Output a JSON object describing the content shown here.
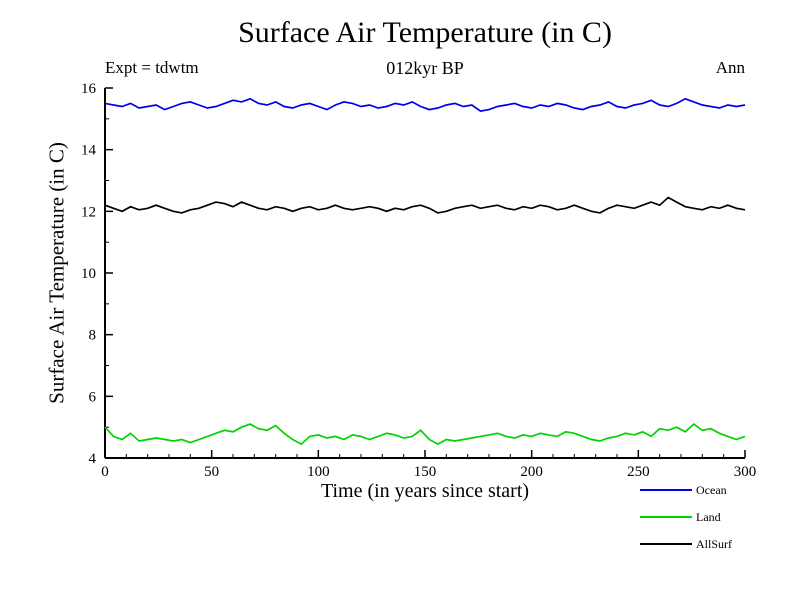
{
  "chart": {
    "title": "Surface Air Temperature (in C)",
    "subtitle_left": "Expt = tdwtm",
    "subtitle_center": "012kyr BP",
    "subtitle_right": "Ann",
    "xlabel": "Time (in years since start)",
    "ylabel": "Surface Air Temperature (in C)"
  },
  "chart_data": {
    "type": "line",
    "title": "Surface Air Temperature (in C)",
    "xlabel": "Time (in years since start)",
    "ylabel": "Surface Air Temperature (in C)",
    "xlim": [
      0,
      300
    ],
    "ylim": [
      4,
      16
    ],
    "x_major_tick": 50,
    "x_minor_tick": 10,
    "y_major_tick": 2,
    "y_minor_tick": 1,
    "x_tick_labels": [
      "0",
      "50",
      "100",
      "150",
      "200",
      "250",
      "300"
    ],
    "y_tick_labels": [
      "4",
      "6",
      "8",
      "10",
      "12",
      "14",
      "16"
    ],
    "grid": false,
    "legend_position": "bottom-right",
    "annotations": [
      "Expt = tdwtm",
      "012kyr BP",
      "Ann"
    ],
    "series": [
      {
        "name": "Ocean",
        "color": "#0000ee",
        "approx_mean": 15.45,
        "values": [
          15.5,
          15.45,
          15.4,
          15.5,
          15.35,
          15.4,
          15.45,
          15.3,
          15.4,
          15.5,
          15.55,
          15.45,
          15.35,
          15.4,
          15.5,
          15.6,
          15.55,
          15.65,
          15.5,
          15.45,
          15.55,
          15.4,
          15.35,
          15.45,
          15.5,
          15.4,
          15.3,
          15.45,
          15.55,
          15.5,
          15.4,
          15.45,
          15.35,
          15.4,
          15.5,
          15.45,
          15.55,
          15.4,
          15.3,
          15.35,
          15.45,
          15.5,
          15.4,
          15.45,
          15.25,
          15.3,
          15.4,
          15.45,
          15.5,
          15.4,
          15.35,
          15.45,
          15.4,
          15.5,
          15.45,
          15.35,
          15.3,
          15.4,
          15.45,
          15.55,
          15.4,
          15.35,
          15.45,
          15.5,
          15.6,
          15.45,
          15.4,
          15.5,
          15.65,
          15.55,
          15.45,
          15.4,
          15.35,
          15.45,
          15.4,
          15.45
        ]
      },
      {
        "name": "Land",
        "color": "#00d400",
        "approx_mean": 4.7,
        "values": [
          5.0,
          4.7,
          4.6,
          4.8,
          4.55,
          4.6,
          4.65,
          4.6,
          4.55,
          4.6,
          4.5,
          4.6,
          4.7,
          4.8,
          4.9,
          4.85,
          5.0,
          5.1,
          4.95,
          4.9,
          5.05,
          4.8,
          4.6,
          4.45,
          4.7,
          4.75,
          4.65,
          4.7,
          4.6,
          4.75,
          4.7,
          4.6,
          4.7,
          4.8,
          4.75,
          4.65,
          4.7,
          4.9,
          4.6,
          4.45,
          4.6,
          4.55,
          4.6,
          4.65,
          4.7,
          4.75,
          4.8,
          4.7,
          4.65,
          4.75,
          4.7,
          4.8,
          4.75,
          4.7,
          4.85,
          4.8,
          4.7,
          4.6,
          4.55,
          4.65,
          4.7,
          4.8,
          4.75,
          4.85,
          4.7,
          4.95,
          4.9,
          5.0,
          4.85,
          5.1,
          4.9,
          4.95,
          4.8,
          4.7,
          4.6,
          4.7
        ]
      },
      {
        "name": "AllSurf",
        "color": "#000000",
        "approx_mean": 12.1,
        "values": [
          12.2,
          12.1,
          12.0,
          12.15,
          12.05,
          12.1,
          12.2,
          12.1,
          12.0,
          11.95,
          12.05,
          12.1,
          12.2,
          12.3,
          12.25,
          12.15,
          12.3,
          12.2,
          12.1,
          12.05,
          12.15,
          12.1,
          12.0,
          12.1,
          12.15,
          12.05,
          12.1,
          12.2,
          12.1,
          12.05,
          12.1,
          12.15,
          12.1,
          12.0,
          12.1,
          12.05,
          12.15,
          12.2,
          12.1,
          11.95,
          12.0,
          12.1,
          12.15,
          12.2,
          12.1,
          12.15,
          12.2,
          12.1,
          12.05,
          12.15,
          12.1,
          12.2,
          12.15,
          12.05,
          12.1,
          12.2,
          12.1,
          12.0,
          11.95,
          12.1,
          12.2,
          12.15,
          12.1,
          12.2,
          12.3,
          12.2,
          12.45,
          12.3,
          12.15,
          12.1,
          12.05,
          12.15,
          12.1,
          12.2,
          12.1,
          12.05
        ]
      }
    ]
  }
}
